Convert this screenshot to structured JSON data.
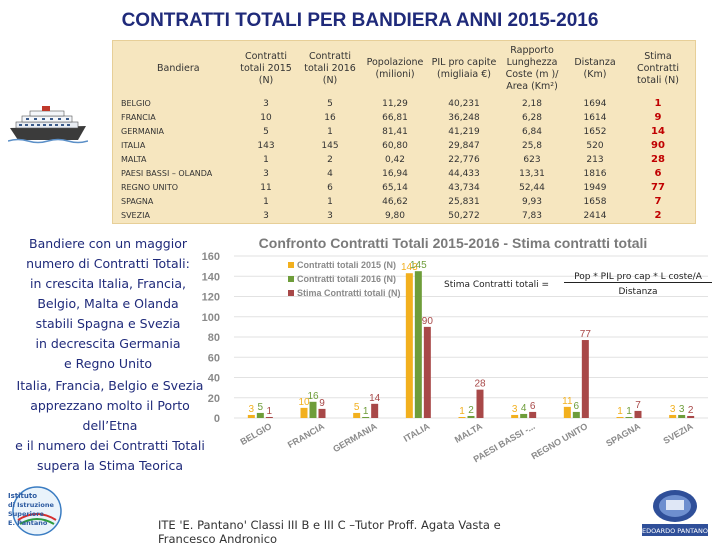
{
  "title": "CONTRATTI TOTALI PER BANDIERA ANNI 2015-2016",
  "table": {
    "headers": {
      "bandiera": "Bandiera",
      "c2015": [
        "Contratti",
        "totali 2015",
        "(N)"
      ],
      "c2016": [
        "Contratti",
        "totali 2016",
        "(N)"
      ],
      "popolazione": [
        "Popolazione",
        "(milioni)"
      ],
      "pil": [
        "PIL pro capite",
        "(migliaia €)"
      ],
      "rapporto": [
        "Rapporto",
        "Lunghezza",
        "Coste (m )/",
        "Area (Km²)"
      ],
      "distanza": [
        "Distanza",
        "(Km)"
      ],
      "stima": [
        "Stima",
        "Contratti",
        "totali (N)"
      ]
    },
    "rows": [
      {
        "bandiera": "BELGIO",
        "c2015": "3",
        "c2016": "5",
        "pop": "11,29",
        "pil": "40,231",
        "rapporto": "2,18",
        "distanza": "1694",
        "stima": "1"
      },
      {
        "bandiera": "FRANCIA",
        "c2015": "10",
        "c2016": "16",
        "pop": "66,81",
        "pil": "36,248",
        "rapporto": "6,28",
        "distanza": "1614",
        "stima": "9"
      },
      {
        "bandiera": "GERMANIA",
        "c2015": "5",
        "c2016": "1",
        "pop": "81,41",
        "pil": "41,219",
        "rapporto": "6,84",
        "distanza": "1652",
        "stima": "14"
      },
      {
        "bandiera": "ITALIA",
        "c2015": "143",
        "c2016": "145",
        "pop": "60,80",
        "pil": "29,847",
        "rapporto": "25,8",
        "distanza": "520",
        "stima": "90"
      },
      {
        "bandiera": "MALTA",
        "c2015": "1",
        "c2016": "2",
        "pop": "0,42",
        "pil": "22,776",
        "rapporto": "623",
        "distanza": "213",
        "stima": "28"
      },
      {
        "bandiera": "PAESI BASSI – OLANDA",
        "c2015": "3",
        "c2016": "4",
        "pop": "16,94",
        "pil": "44,433",
        "rapporto": "13,31",
        "distanza": "1816",
        "stima": "6"
      },
      {
        "bandiera": "REGNO UNITO",
        "c2015": "11",
        "c2016": "6",
        "pop": "65,14",
        "pil": "43,734",
        "rapporto": "52,44",
        "distanza": "1949",
        "stima": "77"
      },
      {
        "bandiera": "SPAGNA",
        "c2015": "1",
        "c2016": "1",
        "pop": "46,62",
        "pil": "25,831",
        "rapporto": "9,93",
        "distanza": "1658",
        "stima": "7"
      },
      {
        "bandiera": "SVEZIA",
        "c2015": "3",
        "c2016": "3",
        "pop": "9,80",
        "pil": "50,272",
        "rapporto": "7,83",
        "distanza": "2414",
        "stima": "2"
      }
    ]
  },
  "notes": {
    "note1": [
      "Bandiere con un maggior",
      "numero di Contratti Totali:",
      "in crescita Italia, Francia,",
      "Belgio, Malta e Olanda",
      "stabili Spagna e Svezia",
      "in decrescita Germania",
      "e Regno Unito"
    ],
    "note2": [
      "Italia, Francia, Belgio e Svezia",
      "apprezzano molto il Porto",
      "dell’Etna",
      "e il numero dei Contratti Totali",
      "supera la Stima Teorica"
    ]
  },
  "formula": {
    "label": "Stima Contratti totali =",
    "numerator": "Pop * PIL pro cap * L coste/A",
    "denominator": "Distanza"
  },
  "footer": {
    "line1": "ITE 'E. Pantano' Classi III B e III C –Tutor Proff. Agata Vasta e",
    "line2": "Francesco Andronico"
  },
  "logos": {
    "left_text": [
      "Istituto",
      "di Istruzione",
      "Superiore",
      "E. Pantano"
    ],
    "right_text": "EDOARDO PANTANO"
  },
  "colors": {
    "title": "#1f2a7a",
    "table_bg": "#f6e6bf",
    "s2015": "#f2b01e",
    "s2016": "#6e9d3a",
    "stima": "#a84848"
  },
  "chart_data": {
    "type": "bar",
    "title": "Confronto Contratti Totali 2015-2016 - Stima contratti totali",
    "categories": [
      "BELGIO",
      "FRANCIA",
      "GERMANIA",
      "ITALIA",
      "MALTA",
      "PAESI BASSI -...",
      "REGNO UNITO",
      "SPAGNA",
      "SVEZIA"
    ],
    "series": [
      {
        "name": "Contratti totali 2015 (N)",
        "values": [
          3,
          10,
          5,
          143,
          1,
          3,
          11,
          1,
          3
        ]
      },
      {
        "name": "Contratti totali 2016 (N)",
        "values": [
          5,
          16,
          1,
          145,
          2,
          4,
          6,
          1,
          3
        ]
      },
      {
        "name": "Stima Contratti totali (N)",
        "values": [
          1,
          9,
          14,
          90,
          28,
          6,
          77,
          7,
          2
        ]
      }
    ],
    "ylim": [
      0,
      160
    ],
    "yticks": [
      0,
      20,
      40,
      60,
      80,
      100,
      120,
      140,
      160
    ],
    "legend": "top-left"
  }
}
